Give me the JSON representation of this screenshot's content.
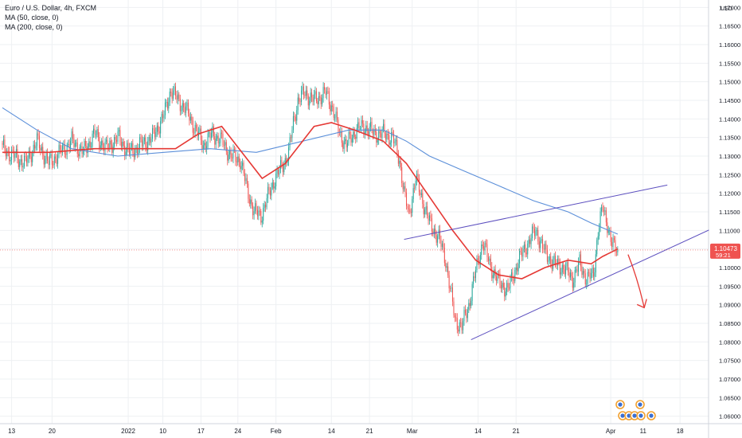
{
  "header": {
    "symbol_line": "Euro / U.S. Dollar, 4h, FXCM",
    "indicators": [
      "MA (50, close, 0)",
      "MA (200, close, 0)"
    ]
  },
  "price_axis": {
    "currency": "USD",
    "ticks": [
      "1.17000",
      "1.16500",
      "1.16000",
      "1.15500",
      "1.15000",
      "1.14500",
      "1.14000",
      "1.13500",
      "1.13000",
      "1.12500",
      "1.12000",
      "1.11500",
      "1.11000",
      "1.10500",
      "1.10000",
      "1.09500",
      "1.09000",
      "1.08500",
      "1.08000",
      "1.07500",
      "1.07000",
      "1.06500",
      "1.06000"
    ],
    "last_price": "1.10473",
    "countdown": "59:21"
  },
  "time_axis": {
    "labels": [
      "13",
      "20",
      "2022",
      "10",
      "17",
      "24",
      "Feb",
      "14",
      "21",
      "Mar",
      "14",
      "21",
      "Apr",
      "11",
      "18"
    ]
  },
  "colors": {
    "up": "#26a69a",
    "down": "#ef5350",
    "ma50": "#e53935",
    "ma200": "#5b8fd9",
    "trendline": "#5c4fbf",
    "arrow": "#e53935",
    "price_tag": "#ef5350"
  },
  "chart_data": {
    "type": "candlestick",
    "title": "Euro / U.S. Dollar, 4h, FXCM",
    "ylim": [
      1.058,
      1.172
    ],
    "price_ticks": [
      1.17,
      1.165,
      1.16,
      1.155,
      1.15,
      1.145,
      1.14,
      1.135,
      1.13,
      1.125,
      1.12,
      1.115,
      1.11,
      1.105,
      1.1,
      1.095,
      1.09,
      1.085,
      1.08,
      1.075,
      1.07,
      1.065,
      1.06
    ],
    "x_tick_index": [
      8,
      43,
      109,
      139,
      172,
      204,
      237,
      285,
      318,
      355,
      412,
      445,
      527,
      555,
      587
    ],
    "anchors": [
      [
        0,
        1.132
      ],
      [
        10,
        1.13
      ],
      [
        20,
        1.128
      ],
      [
        30,
        1.134
      ],
      [
        40,
        1.128
      ],
      [
        50,
        1.131
      ],
      [
        60,
        1.134
      ],
      [
        70,
        1.131
      ],
      [
        80,
        1.136
      ],
      [
        90,
        1.132
      ],
      [
        100,
        1.135
      ],
      [
        110,
        1.131
      ],
      [
        120,
        1.133
      ],
      [
        130,
        1.135
      ],
      [
        140,
        1.141
      ],
      [
        146,
        1.148
      ],
      [
        152,
        1.145
      ],
      [
        158,
        1.143
      ],
      [
        166,
        1.138
      ],
      [
        174,
        1.133
      ],
      [
        182,
        1.136
      ],
      [
        190,
        1.134
      ],
      [
        198,
        1.13
      ],
      [
        206,
        1.129
      ],
      [
        212,
        1.121
      ],
      [
        218,
        1.115
      ],
      [
        224,
        1.114
      ],
      [
        230,
        1.119
      ],
      [
        236,
        1.124
      ],
      [
        242,
        1.127
      ],
      [
        248,
        1.131
      ],
      [
        252,
        1.139
      ],
      [
        256,
        1.145
      ],
      [
        262,
        1.147
      ],
      [
        270,
        1.145
      ],
      [
        280,
        1.147
      ],
      [
        286,
        1.143
      ],
      [
        292,
        1.136
      ],
      [
        298,
        1.133
      ],
      [
        306,
        1.137
      ],
      [
        314,
        1.138
      ],
      [
        322,
        1.136
      ],
      [
        330,
        1.136
      ],
      [
        338,
        1.135
      ],
      [
        344,
        1.129
      ],
      [
        348,
        1.12
      ],
      [
        352,
        1.114
      ],
      [
        358,
        1.124
      ],
      [
        364,
        1.118
      ],
      [
        370,
        1.112
      ],
      [
        378,
        1.108
      ],
      [
        384,
        1.102
      ],
      [
        388,
        1.094
      ],
      [
        392,
        1.086
      ],
      [
        398,
        1.084
      ],
      [
        404,
        1.09
      ],
      [
        410,
        1.099
      ],
      [
        416,
        1.107
      ],
      [
        422,
        1.101
      ],
      [
        430,
        1.096
      ],
      [
        438,
        1.094
      ],
      [
        446,
        1.101
      ],
      [
        454,
        1.106
      ],
      [
        462,
        1.11
      ],
      [
        470,
        1.104
      ],
      [
        478,
        1.101
      ],
      [
        486,
        1.1
      ],
      [
        494,
        1.097
      ],
      [
        500,
        1.101
      ],
      [
        506,
        1.097
      ],
      [
        512,
        1.098
      ],
      [
        516,
        1.11
      ],
      [
        520,
        1.116
      ],
      [
        524,
        1.112
      ],
      [
        528,
        1.106
      ],
      [
        533,
        1.1047
      ]
    ],
    "ma50": [
      [
        0,
        1.131
      ],
      [
        40,
        1.131
      ],
      [
        80,
        1.132
      ],
      [
        120,
        1.132
      ],
      [
        150,
        1.132
      ],
      [
        170,
        1.136
      ],
      [
        190,
        1.138
      ],
      [
        205,
        1.132
      ],
      [
        225,
        1.124
      ],
      [
        245,
        1.128
      ],
      [
        270,
        1.138
      ],
      [
        285,
        1.139
      ],
      [
        305,
        1.137
      ],
      [
        330,
        1.134
      ],
      [
        350,
        1.128
      ],
      [
        370,
        1.119
      ],
      [
        390,
        1.11
      ],
      [
        410,
        1.102
      ],
      [
        430,
        1.098
      ],
      [
        450,
        1.097
      ],
      [
        470,
        1.1
      ],
      [
        490,
        1.102
      ],
      [
        510,
        1.101
      ],
      [
        520,
        1.103
      ],
      [
        533,
        1.105
      ]
    ],
    "ma200": [
      [
        0,
        1.143
      ],
      [
        30,
        1.137
      ],
      [
        60,
        1.132
      ],
      [
        100,
        1.13
      ],
      [
        140,
        1.131
      ],
      [
        180,
        1.132
      ],
      [
        220,
        1.131
      ],
      [
        260,
        1.134
      ],
      [
        300,
        1.137
      ],
      [
        330,
        1.137
      ],
      [
        350,
        1.134
      ],
      [
        370,
        1.13
      ],
      [
        400,
        1.126
      ],
      [
        430,
        1.122
      ],
      [
        460,
        1.118
      ],
      [
        490,
        1.115
      ],
      [
        510,
        1.112
      ],
      [
        533,
        1.109
      ]
    ],
    "trendlines": [
      [
        [
          348,
          1.1076
        ],
        [
          576,
          1.1222
        ]
      ],
      [
        [
          406,
          1.0806
        ],
        [
          612,
          1.1101
        ]
      ]
    ],
    "forecast_arrow": [
      [
        542,
        1.1035
      ],
      [
        556,
        1.0892
      ]
    ]
  }
}
